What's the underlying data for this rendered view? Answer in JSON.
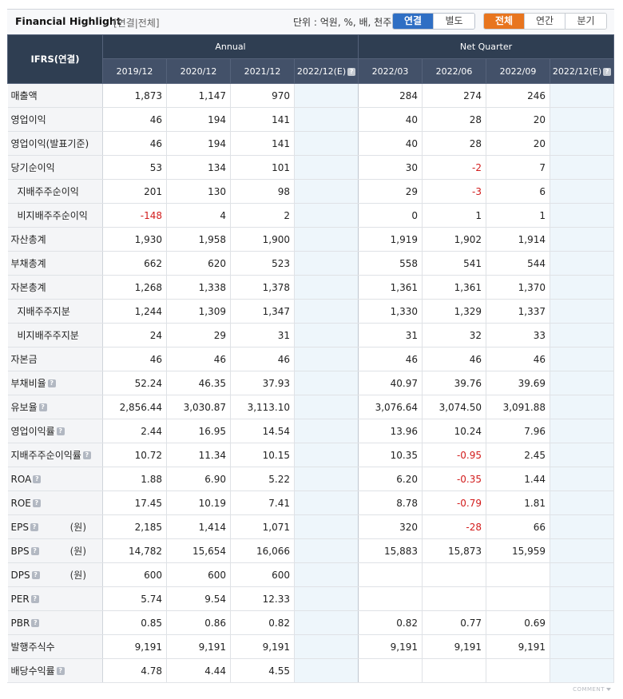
{
  "header": {
    "title": "Financial Highlight",
    "subtitle": "[연결|전체]",
    "units_label": "단위 : 억원, %, 배, 천주",
    "scope_buttons": [
      {
        "label": "연결",
        "active": true
      },
      {
        "label": "별도",
        "active": false
      }
    ],
    "period_buttons": [
      {
        "label": "전체",
        "active": true
      },
      {
        "label": "연간",
        "active": false
      },
      {
        "label": "분기",
        "active": false
      }
    ]
  },
  "table": {
    "corner_label": "IFRS(연결)",
    "group_annual": "Annual",
    "group_quarter": "Net Quarter",
    "columns": [
      "2019/12",
      "2020/12",
      "2021/12",
      "2022/12(E)",
      "2022/03",
      "2022/06",
      "2022/09",
      "2022/12(E)"
    ],
    "rows": [
      {
        "label": "매출액",
        "indent": false,
        "help": false,
        "unit": "",
        "values": [
          "1,873",
          "1,147",
          "970",
          "",
          "284",
          "274",
          "246",
          ""
        ]
      },
      {
        "label": "영업이익",
        "indent": false,
        "help": false,
        "unit": "",
        "values": [
          "46",
          "194",
          "141",
          "",
          "40",
          "28",
          "20",
          ""
        ]
      },
      {
        "label": "영업이익(발표기준)",
        "indent": false,
        "help": false,
        "unit": "",
        "values": [
          "46",
          "194",
          "141",
          "",
          "40",
          "28",
          "20",
          ""
        ]
      },
      {
        "label": "당기순이익",
        "indent": false,
        "help": false,
        "unit": "",
        "values": [
          "53",
          "134",
          "101",
          "",
          "30",
          "-2",
          "7",
          ""
        ]
      },
      {
        "label": "지배주주순이익",
        "indent": true,
        "help": false,
        "unit": "",
        "values": [
          "201",
          "130",
          "98",
          "",
          "29",
          "-3",
          "6",
          ""
        ]
      },
      {
        "label": "비지배주주순이익",
        "indent": true,
        "help": false,
        "unit": "",
        "values": [
          "-148",
          "4",
          "2",
          "",
          "0",
          "1",
          "1",
          ""
        ]
      },
      {
        "label": "자산총계",
        "indent": false,
        "help": false,
        "unit": "",
        "values": [
          "1,930",
          "1,958",
          "1,900",
          "",
          "1,919",
          "1,902",
          "1,914",
          ""
        ]
      },
      {
        "label": "부채총계",
        "indent": false,
        "help": false,
        "unit": "",
        "values": [
          "662",
          "620",
          "523",
          "",
          "558",
          "541",
          "544",
          ""
        ]
      },
      {
        "label": "자본총계",
        "indent": false,
        "help": false,
        "unit": "",
        "values": [
          "1,268",
          "1,338",
          "1,378",
          "",
          "1,361",
          "1,361",
          "1,370",
          ""
        ]
      },
      {
        "label": "지배주주지분",
        "indent": true,
        "help": false,
        "unit": "",
        "values": [
          "1,244",
          "1,309",
          "1,347",
          "",
          "1,330",
          "1,329",
          "1,337",
          ""
        ]
      },
      {
        "label": "비지배주주지분",
        "indent": true,
        "help": false,
        "unit": "",
        "values": [
          "24",
          "29",
          "31",
          "",
          "31",
          "32",
          "33",
          ""
        ]
      },
      {
        "label": "자본금",
        "indent": false,
        "help": false,
        "unit": "",
        "values": [
          "46",
          "46",
          "46",
          "",
          "46",
          "46",
          "46",
          ""
        ]
      },
      {
        "label": "부채비율",
        "indent": false,
        "help": true,
        "unit": "",
        "values": [
          "52.24",
          "46.35",
          "37.93",
          "",
          "40.97",
          "39.76",
          "39.69",
          ""
        ]
      },
      {
        "label": "유보율",
        "indent": false,
        "help": true,
        "unit": "",
        "values": [
          "2,856.44",
          "3,030.87",
          "3,113.10",
          "",
          "3,076.64",
          "3,074.50",
          "3,091.88",
          ""
        ]
      },
      {
        "label": "영업이익률",
        "indent": false,
        "help": true,
        "unit": "",
        "values": [
          "2.44",
          "16.95",
          "14.54",
          "",
          "13.96",
          "10.24",
          "7.96",
          ""
        ]
      },
      {
        "label": "지배주주순이익률",
        "indent": false,
        "help": true,
        "unit": "",
        "values": [
          "10.72",
          "11.34",
          "10.15",
          "",
          "10.35",
          "-0.95",
          "2.45",
          ""
        ]
      },
      {
        "label": "ROA",
        "indent": false,
        "help": true,
        "unit": "",
        "values": [
          "1.88",
          "6.90",
          "5.22",
          "",
          "6.20",
          "-0.35",
          "1.44",
          ""
        ]
      },
      {
        "label": "ROE",
        "indent": false,
        "help": true,
        "unit": "",
        "values": [
          "17.45",
          "10.19",
          "7.41",
          "",
          "8.78",
          "-0.79",
          "1.81",
          ""
        ]
      },
      {
        "label": "EPS",
        "indent": false,
        "help": true,
        "unit": "(원)",
        "values": [
          "2,185",
          "1,414",
          "1,071",
          "",
          "320",
          "-28",
          "66",
          ""
        ]
      },
      {
        "label": "BPS",
        "indent": false,
        "help": true,
        "unit": "(원)",
        "values": [
          "14,782",
          "15,654",
          "16,066",
          "",
          "15,883",
          "15,873",
          "15,959",
          ""
        ]
      },
      {
        "label": "DPS",
        "indent": false,
        "help": true,
        "unit": "(원)",
        "values": [
          "600",
          "600",
          "600",
          "",
          "",
          "",
          "",
          ""
        ]
      },
      {
        "label": "PER",
        "indent": false,
        "help": true,
        "unit": "",
        "values": [
          "5.74",
          "9.54",
          "12.33",
          "",
          "",
          "",
          "",
          ""
        ]
      },
      {
        "label": "PBR",
        "indent": false,
        "help": true,
        "unit": "",
        "values": [
          "0.85",
          "0.86",
          "0.82",
          "",
          "0.82",
          "0.77",
          "0.69",
          ""
        ]
      },
      {
        "label": "발행주식수",
        "indent": false,
        "help": false,
        "unit": "",
        "values": [
          "9,191",
          "9,191",
          "9,191",
          "",
          "9,191",
          "9,191",
          "9,191",
          ""
        ]
      },
      {
        "label": "배당수익률",
        "indent": false,
        "help": true,
        "unit": "",
        "values": [
          "4.78",
          "4.44",
          "4.55",
          "",
          "",
          "",
          "",
          ""
        ]
      }
    ]
  },
  "footer": {
    "comment_label": "COMMENT"
  },
  "colors": {
    "header_bg": "#2f3e52",
    "scope_active": "#2f6fc4",
    "period_active": "#e8751e",
    "negative": "#d21c1c",
    "estimate_bg": "#eef6fb"
  },
  "icons": {
    "help": "question-icon",
    "toggle": "chevron-down-icon"
  }
}
